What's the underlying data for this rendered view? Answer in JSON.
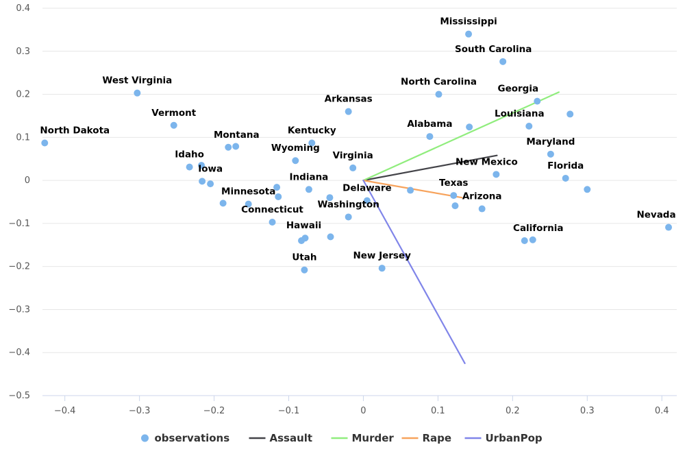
{
  "chart_data": {
    "type": "scatter",
    "title": "",
    "xlabel": "",
    "ylabel": "",
    "xlim": [
      -0.43,
      0.42
    ],
    "ylim": [
      -0.5,
      0.4
    ],
    "x_ticks": [
      -0.4,
      -0.3,
      -0.2,
      -0.1,
      0,
      0.1,
      0.2,
      0.3,
      0.4
    ],
    "y_ticks": [
      0.4,
      0.3,
      0.2,
      0.1,
      0,
      -0.1,
      -0.2,
      -0.3,
      -0.4,
      -0.5
    ],
    "x_tick_labels": [
      "−0.4",
      "−0.3",
      "−0.2",
      "−0.1",
      "0",
      "0.1",
      "0.2",
      "0.3",
      "0.4"
    ],
    "y_tick_labels": [
      "0.4",
      "0.3",
      "0.2",
      "0.1",
      "0",
      "−0.1",
      "−0.2",
      "−0.3",
      "−0.4",
      "−0.5"
    ],
    "grid": "horizontal",
    "legend_position": "bottom",
    "colors": {
      "observations": "#7cb5ec",
      "Assault": "#434348",
      "Murder": "#90ed7d",
      "Rape": "#f7a35c",
      "UrbanPop": "#8085e9",
      "grid": "#e6e6e6",
      "axis": "#ccd6eb"
    },
    "legend": [
      {
        "name": "observations",
        "kind": "marker"
      },
      {
        "name": "Assault",
        "kind": "line"
      },
      {
        "name": "Murder",
        "kind": "line"
      },
      {
        "name": "Rape",
        "kind": "line"
      },
      {
        "name": "UrbanPop",
        "kind": "line"
      }
    ],
    "points": [
      {
        "x": 0.141,
        "y": 0.34,
        "label": "Mississippi",
        "label_dx": 0,
        "label_dy": -14
      },
      {
        "x": 0.187,
        "y": 0.276,
        "label": "South Carolina",
        "label_dx": -14,
        "label_dy": -14
      },
      {
        "x": 0.101,
        "y": 0.2,
        "label": "North Carolina",
        "label_dx": 0,
        "label_dy": -14
      },
      {
        "x": -0.303,
        "y": 0.203,
        "label": "West Virginia",
        "label_dx": 0,
        "label_dy": -14
      },
      {
        "x": -0.254,
        "y": 0.128,
        "label": "Vermont",
        "label_dx": 0,
        "label_dy": -14
      },
      {
        "x": -0.427,
        "y": 0.087,
        "label": "North Dakota",
        "label_dx": 44,
        "label_dy": -14
      },
      {
        "x": -0.02,
        "y": 0.16,
        "label": "Arkansas",
        "label_dx": 0,
        "label_dy": -14
      },
      {
        "x": 0.233,
        "y": 0.184,
        "label": "Georgia",
        "label_dx": -28,
        "label_dy": -14
      },
      {
        "x": 0.277,
        "y": 0.154,
        "label": "",
        "label_dx": 0,
        "label_dy": 0
      },
      {
        "x": 0.222,
        "y": 0.126,
        "label": "Louisiana",
        "label_dx": -14,
        "label_dy": -14
      },
      {
        "x": 0.089,
        "y": 0.102,
        "label": "Alabama",
        "label_dx": 0,
        "label_dy": -14
      },
      {
        "x": 0.142,
        "y": 0.124,
        "label": "",
        "label_dx": 0,
        "label_dy": 0
      },
      {
        "x": 0.251,
        "y": 0.061,
        "label": "Maryland",
        "label_dx": 0,
        "label_dy": -14
      },
      {
        "x": 0.271,
        "y": 0.005,
        "label": "Florida",
        "label_dx": 0,
        "label_dy": -14
      },
      {
        "x": 0.3,
        "y": -0.021,
        "label": "",
        "label_dx": 0,
        "label_dy": 0
      },
      {
        "x": 0.178,
        "y": 0.014,
        "label": "New Mexico",
        "label_dx": -14,
        "label_dy": -14
      },
      {
        "x": 0.121,
        "y": -0.035,
        "label": "Texas",
        "label_dx": 0,
        "label_dy": -14
      },
      {
        "x": 0.123,
        "y": -0.059,
        "label": "",
        "label_dx": 0,
        "label_dy": 0
      },
      {
        "x": 0.159,
        "y": -0.066,
        "label": "Arizona",
        "label_dx": 0,
        "label_dy": -14
      },
      {
        "x": 0.216,
        "y": -0.14,
        "label": "California",
        "label_dx": 20,
        "label_dy": -14
      },
      {
        "x": 0.227,
        "y": -0.138,
        "label": "",
        "label_dx": 0,
        "label_dy": 0
      },
      {
        "x": 0.409,
        "y": -0.109,
        "label": "Nevada",
        "label_dx": -18,
        "label_dy": -14
      },
      {
        "x": -0.069,
        "y": 0.087,
        "label": "Kentucky",
        "label_dx": 0,
        "label_dy": -14
      },
      {
        "x": -0.091,
        "y": 0.046,
        "label": "Wyoming",
        "label_dx": 0,
        "label_dy": -14
      },
      {
        "x": -0.014,
        "y": 0.029,
        "label": "Virginia",
        "label_dx": 0,
        "label_dy": -14
      },
      {
        "x": -0.181,
        "y": 0.077,
        "label": "Montana",
        "label_dx": 12,
        "label_dy": -14
      },
      {
        "x": -0.171,
        "y": 0.079,
        "label": "",
        "label_dx": 0,
        "label_dy": 0
      },
      {
        "x": -0.233,
        "y": 0.031,
        "label": "Idaho",
        "label_dx": 0,
        "label_dy": -14
      },
      {
        "x": -0.217,
        "y": 0.035,
        "label": "",
        "label_dx": 0,
        "label_dy": 0
      },
      {
        "x": -0.216,
        "y": -0.002,
        "label": "Iowa",
        "label_dx": 12,
        "label_dy": -14
      },
      {
        "x": -0.205,
        "y": -0.008,
        "label": "",
        "label_dx": 0,
        "label_dy": 0
      },
      {
        "x": -0.188,
        "y": -0.053,
        "label": "",
        "label_dx": 0,
        "label_dy": 0
      },
      {
        "x": -0.154,
        "y": -0.055,
        "label": "Minnesota",
        "label_dx": 0,
        "label_dy": -14
      },
      {
        "x": -0.116,
        "y": -0.016,
        "label": "",
        "label_dx": 0,
        "label_dy": 0
      },
      {
        "x": -0.114,
        "y": -0.038,
        "label": "",
        "label_dx": 0,
        "label_dy": 0
      },
      {
        "x": -0.073,
        "y": -0.021,
        "label": "Indiana",
        "label_dx": 0,
        "label_dy": -14
      },
      {
        "x": -0.045,
        "y": -0.04,
        "label": "",
        "label_dx": 0,
        "label_dy": 0
      },
      {
        "x": -0.122,
        "y": -0.097,
        "label": "Connecticut",
        "label_dx": 0,
        "label_dy": -14
      },
      {
        "x": 0.005,
        "y": -0.047,
        "label": "Delaware",
        "label_dx": 0,
        "label_dy": -14
      },
      {
        "x": 0.063,
        "y": -0.023,
        "label": "",
        "label_dx": 0,
        "label_dy": 0
      },
      {
        "x": -0.02,
        "y": -0.085,
        "label": "Washington",
        "label_dx": 0,
        "label_dy": -14
      },
      {
        "x": -0.083,
        "y": -0.14,
        "label": "",
        "label_dx": 0,
        "label_dy": 0
      },
      {
        "x": -0.078,
        "y": -0.134,
        "label": "Hawaii",
        "label_dx": -2,
        "label_dy": -14
      },
      {
        "x": -0.044,
        "y": -0.131,
        "label": "",
        "label_dx": 0,
        "label_dy": 0
      },
      {
        "x": -0.079,
        "y": -0.208,
        "label": "Utah",
        "label_dx": 0,
        "label_dy": -14
      },
      {
        "x": 0.025,
        "y": -0.204,
        "label": "New Jersey",
        "label_dx": 0,
        "label_dy": -14
      }
    ],
    "vectors": [
      {
        "name": "Assault",
        "x0": 0,
        "y0": 0,
        "x1": 0.179,
        "y1": 0.058
      },
      {
        "name": "Murder",
        "x0": 0,
        "y0": 0,
        "x1": 0.262,
        "y1": 0.205
      },
      {
        "name": "Rape",
        "x0": 0,
        "y0": 0,
        "x1": 0.132,
        "y1": -0.04
      },
      {
        "name": "UrbanPop",
        "x0": 0,
        "y0": 0,
        "x1": 0.136,
        "y1": -0.425
      }
    ]
  }
}
